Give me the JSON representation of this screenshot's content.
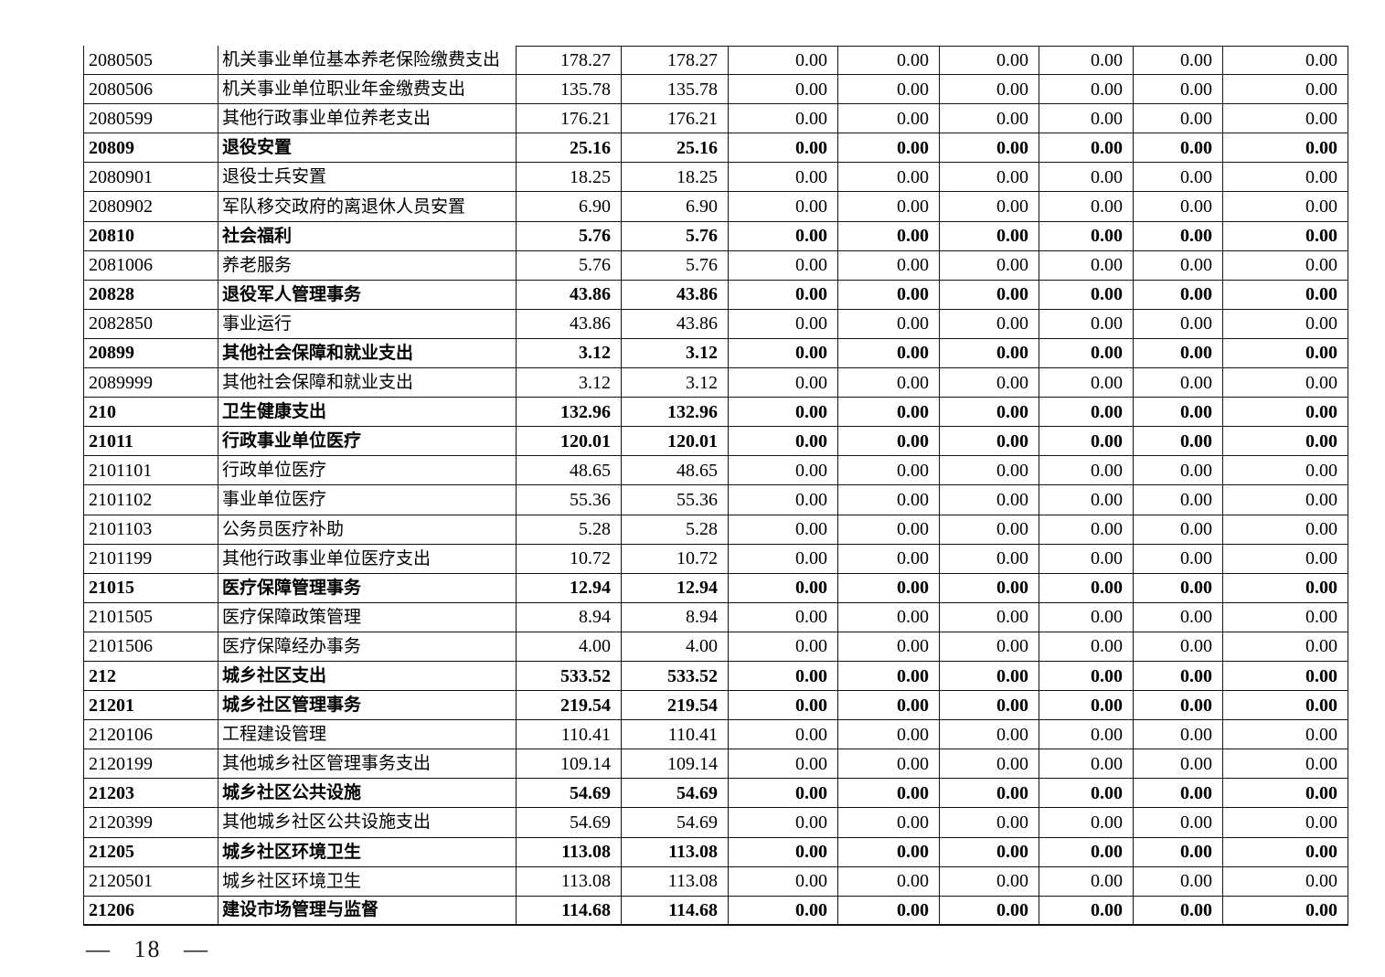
{
  "document": {
    "page_number": "— 18 —"
  },
  "table": {
    "rows": [
      {
        "code": "2080505",
        "name": "机关事业单位基本养老保险缴费支出",
        "bold": false,
        "values": [
          "178.27",
          "178.27",
          "0.00",
          "0.00",
          "0.00",
          "0.00",
          "0.00",
          "0.00"
        ]
      },
      {
        "code": "2080506",
        "name": "机关事业单位职业年金缴费支出",
        "bold": false,
        "values": [
          "135.78",
          "135.78",
          "0.00",
          "0.00",
          "0.00",
          "0.00",
          "0.00",
          "0.00"
        ]
      },
      {
        "code": "2080599",
        "name": "其他行政事业单位养老支出",
        "bold": false,
        "values": [
          "176.21",
          "176.21",
          "0.00",
          "0.00",
          "0.00",
          "0.00",
          "0.00",
          "0.00"
        ]
      },
      {
        "code": "20809",
        "name": "退役安置",
        "bold": true,
        "values": [
          "25.16",
          "25.16",
          "0.00",
          "0.00",
          "0.00",
          "0.00",
          "0.00",
          "0.00"
        ]
      },
      {
        "code": "2080901",
        "name": "退役士兵安置",
        "bold": false,
        "values": [
          "18.25",
          "18.25",
          "0.00",
          "0.00",
          "0.00",
          "0.00",
          "0.00",
          "0.00"
        ]
      },
      {
        "code": "2080902",
        "name": "军队移交政府的离退休人员安置",
        "bold": false,
        "values": [
          "6.90",
          "6.90",
          "0.00",
          "0.00",
          "0.00",
          "0.00",
          "0.00",
          "0.00"
        ]
      },
      {
        "code": "20810",
        "name": "社会福利",
        "bold": true,
        "values": [
          "5.76",
          "5.76",
          "0.00",
          "0.00",
          "0.00",
          "0.00",
          "0.00",
          "0.00"
        ]
      },
      {
        "code": "2081006",
        "name": "养老服务",
        "bold": false,
        "values": [
          "5.76",
          "5.76",
          "0.00",
          "0.00",
          "0.00",
          "0.00",
          "0.00",
          "0.00"
        ]
      },
      {
        "code": "20828",
        "name": "退役军人管理事务",
        "bold": true,
        "values": [
          "43.86",
          "43.86",
          "0.00",
          "0.00",
          "0.00",
          "0.00",
          "0.00",
          "0.00"
        ]
      },
      {
        "code": "2082850",
        "name": "事业运行",
        "bold": false,
        "values": [
          "43.86",
          "43.86",
          "0.00",
          "0.00",
          "0.00",
          "0.00",
          "0.00",
          "0.00"
        ]
      },
      {
        "code": "20899",
        "name": "其他社会保障和就业支出",
        "bold": true,
        "values": [
          "3.12",
          "3.12",
          "0.00",
          "0.00",
          "0.00",
          "0.00",
          "0.00",
          "0.00"
        ]
      },
      {
        "code": "2089999",
        "name": "其他社会保障和就业支出",
        "bold": false,
        "values": [
          "3.12",
          "3.12",
          "0.00",
          "0.00",
          "0.00",
          "0.00",
          "0.00",
          "0.00"
        ]
      },
      {
        "code": "210",
        "name": "卫生健康支出",
        "bold": true,
        "values": [
          "132.96",
          "132.96",
          "0.00",
          "0.00",
          "0.00",
          "0.00",
          "0.00",
          "0.00"
        ]
      },
      {
        "code": "21011",
        "name": "行政事业单位医疗",
        "bold": true,
        "values": [
          "120.01",
          "120.01",
          "0.00",
          "0.00",
          "0.00",
          "0.00",
          "0.00",
          "0.00"
        ]
      },
      {
        "code": "2101101",
        "name": "行政单位医疗",
        "bold": false,
        "values": [
          "48.65",
          "48.65",
          "0.00",
          "0.00",
          "0.00",
          "0.00",
          "0.00",
          "0.00"
        ]
      },
      {
        "code": "2101102",
        "name": "事业单位医疗",
        "bold": false,
        "values": [
          "55.36",
          "55.36",
          "0.00",
          "0.00",
          "0.00",
          "0.00",
          "0.00",
          "0.00"
        ]
      },
      {
        "code": "2101103",
        "name": "公务员医疗补助",
        "bold": false,
        "values": [
          "5.28",
          "5.28",
          "0.00",
          "0.00",
          "0.00",
          "0.00",
          "0.00",
          "0.00"
        ]
      },
      {
        "code": "2101199",
        "name": "其他行政事业单位医疗支出",
        "bold": false,
        "values": [
          "10.72",
          "10.72",
          "0.00",
          "0.00",
          "0.00",
          "0.00",
          "0.00",
          "0.00"
        ]
      },
      {
        "code": "21015",
        "name": "医疗保障管理事务",
        "bold": true,
        "values": [
          "12.94",
          "12.94",
          "0.00",
          "0.00",
          "0.00",
          "0.00",
          "0.00",
          "0.00"
        ]
      },
      {
        "code": "2101505",
        "name": "医疗保障政策管理",
        "bold": false,
        "values": [
          "8.94",
          "8.94",
          "0.00",
          "0.00",
          "0.00",
          "0.00",
          "0.00",
          "0.00"
        ]
      },
      {
        "code": "2101506",
        "name": "医疗保障经办事务",
        "bold": false,
        "values": [
          "4.00",
          "4.00",
          "0.00",
          "0.00",
          "0.00",
          "0.00",
          "0.00",
          "0.00"
        ]
      },
      {
        "code": "212",
        "name": "城乡社区支出",
        "bold": true,
        "values": [
          "533.52",
          "533.52",
          "0.00",
          "0.00",
          "0.00",
          "0.00",
          "0.00",
          "0.00"
        ]
      },
      {
        "code": "21201",
        "name": "城乡社区管理事务",
        "bold": true,
        "values": [
          "219.54",
          "219.54",
          "0.00",
          "0.00",
          "0.00",
          "0.00",
          "0.00",
          "0.00"
        ]
      },
      {
        "code": "2120106",
        "name": "工程建设管理",
        "bold": false,
        "values": [
          "110.41",
          "110.41",
          "0.00",
          "0.00",
          "0.00",
          "0.00",
          "0.00",
          "0.00"
        ]
      },
      {
        "code": "2120199",
        "name": "其他城乡社区管理事务支出",
        "bold": false,
        "values": [
          "109.14",
          "109.14",
          "0.00",
          "0.00",
          "0.00",
          "0.00",
          "0.00",
          "0.00"
        ]
      },
      {
        "code": "21203",
        "name": "城乡社区公共设施",
        "bold": true,
        "values": [
          "54.69",
          "54.69",
          "0.00",
          "0.00",
          "0.00",
          "0.00",
          "0.00",
          "0.00"
        ]
      },
      {
        "code": "2120399",
        "name": "其他城乡社区公共设施支出",
        "bold": false,
        "values": [
          "54.69",
          "54.69",
          "0.00",
          "0.00",
          "0.00",
          "0.00",
          "0.00",
          "0.00"
        ]
      },
      {
        "code": "21205",
        "name": "城乡社区环境卫生",
        "bold": true,
        "values": [
          "113.08",
          "113.08",
          "0.00",
          "0.00",
          "0.00",
          "0.00",
          "0.00",
          "0.00"
        ]
      },
      {
        "code": "2120501",
        "name": "城乡社区环境卫生",
        "bold": false,
        "values": [
          "113.08",
          "113.08",
          "0.00",
          "0.00",
          "0.00",
          "0.00",
          "0.00",
          "0.00"
        ]
      },
      {
        "code": "21206",
        "name": "建设市场管理与监督",
        "bold": true,
        "values": [
          "114.68",
          "114.68",
          "0.00",
          "0.00",
          "0.00",
          "0.00",
          "0.00",
          "0.00"
        ]
      }
    ]
  }
}
